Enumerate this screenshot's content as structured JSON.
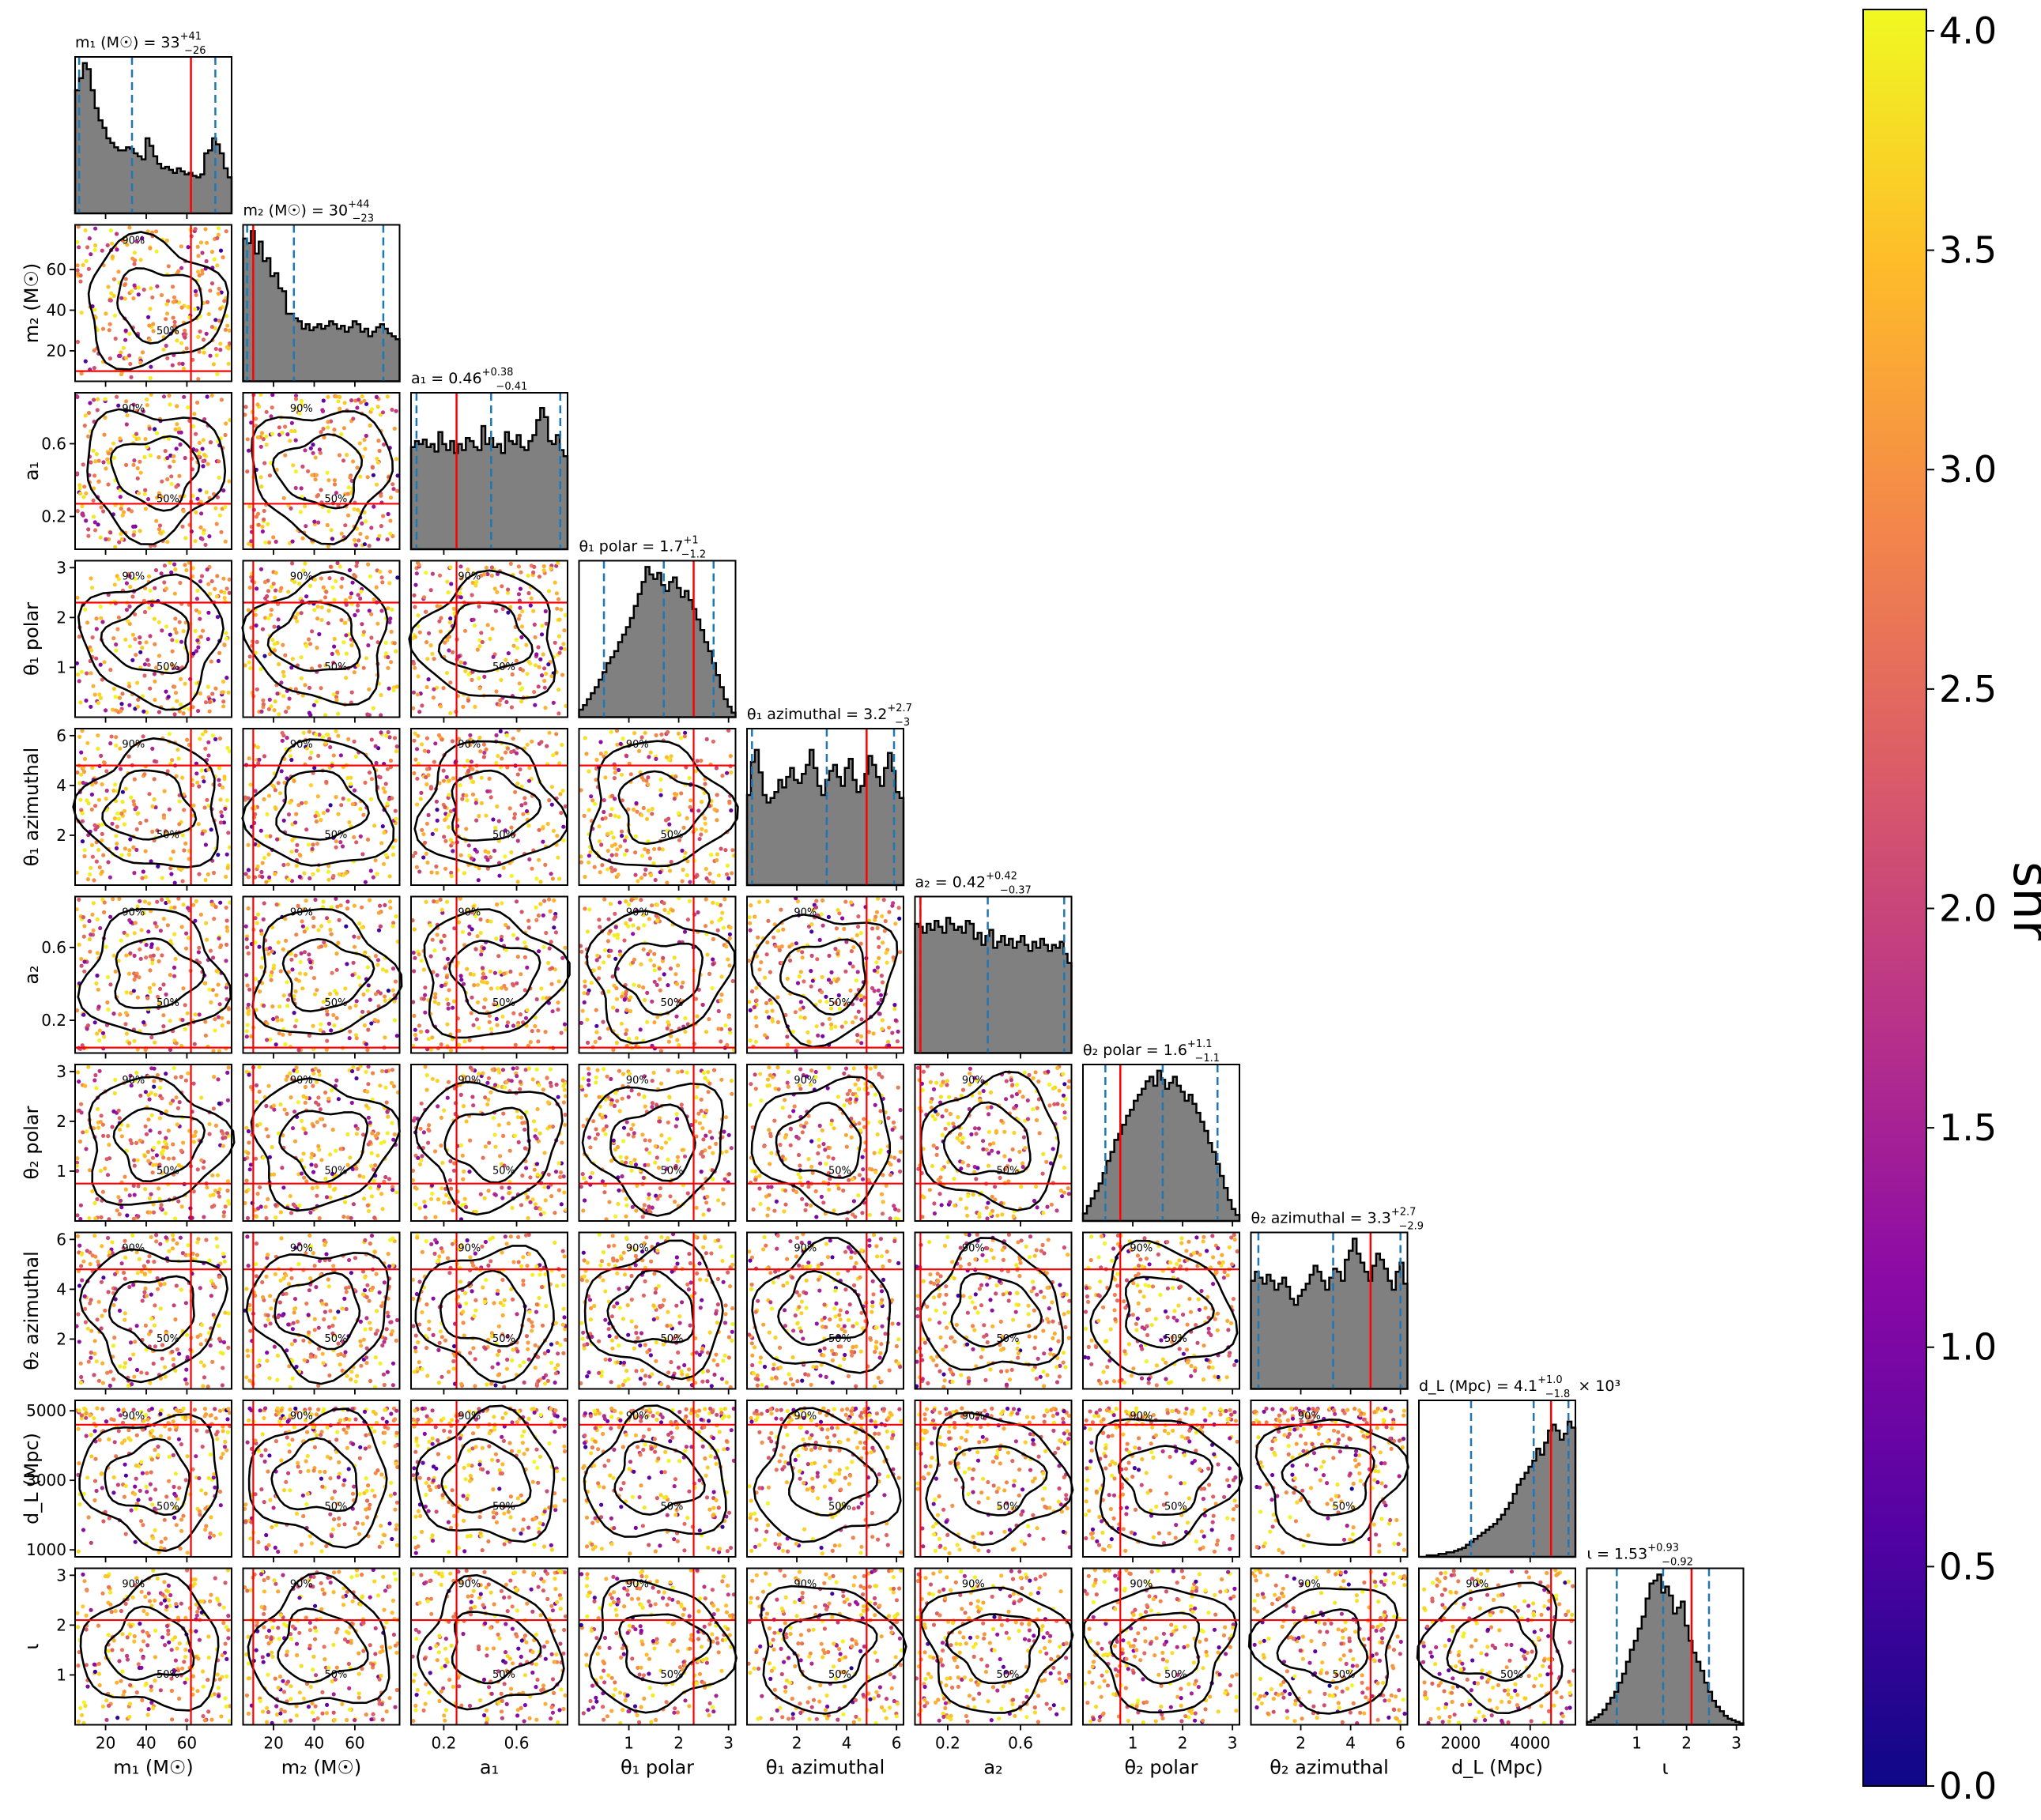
{
  "chart_data": {
    "type": "corner",
    "parameters": [
      {
        "id": "m1",
        "axis_label": "m₁ (M☉)",
        "title": "m₁ (M☉) = 33",
        "title_sup": "+41",
        "title_sub": "−26",
        "range": [
          5,
          82
        ],
        "ticks": [
          20,
          40,
          60
        ],
        "tick_labels": [
          "20",
          "40",
          "60"
        ],
        "median": 33,
        "q05": 7,
        "q95": 74,
        "true_value": 62,
        "hist": [
          0.82,
          0.9,
          1.0,
          0.96,
          0.82,
          0.7,
          0.62,
          0.57,
          0.5,
          0.47,
          0.44,
          0.42,
          0.42,
          0.44,
          0.43,
          0.4,
          0.38,
          0.36,
          0.5,
          0.45,
          0.38,
          0.33,
          0.3,
          0.31,
          0.29,
          0.27,
          0.3,
          0.28,
          0.26,
          0.27,
          0.25,
          0.24,
          0.26,
          0.4,
          0.42,
          0.5,
          0.46,
          0.4,
          0.3,
          0.24
        ]
      },
      {
        "id": "m2",
        "axis_label": "m₂ (M☉)",
        "title": "m₂ (M☉) = 30",
        "title_sup": "+44",
        "title_sub": "−23",
        "range": [
          5,
          82
        ],
        "ticks": [
          20,
          40,
          60
        ],
        "tick_labels": [
          "20",
          "40",
          "60"
        ],
        "median": 30,
        "q05": 7,
        "q95": 74,
        "true_value": 10,
        "hist": [
          0.95,
          0.92,
          1.0,
          0.85,
          0.93,
          0.8,
          0.82,
          0.7,
          0.72,
          0.62,
          0.6,
          0.45,
          0.45,
          0.42,
          0.4,
          0.35,
          0.38,
          0.34,
          0.36,
          0.38,
          0.35,
          0.37,
          0.4,
          0.38,
          0.35,
          0.37,
          0.33,
          0.36,
          0.4,
          0.38,
          0.33,
          0.35,
          0.3,
          0.33,
          0.36,
          0.38,
          0.35,
          0.32,
          0.3,
          0.28
        ]
      },
      {
        "id": "a1",
        "axis_label": "a₁",
        "title": "a₁ = 0.46",
        "title_sup": "+0.38",
        "title_sub": "−0.41",
        "range": [
          0.02,
          0.88
        ],
        "ticks": [
          0.2,
          0.6
        ],
        "tick_labels": [
          "0.2",
          "0.6"
        ],
        "median": 0.46,
        "q05": 0.05,
        "q95": 0.84,
        "true_value": 0.27,
        "hist": [
          0.68,
          0.72,
          0.7,
          0.73,
          0.68,
          0.7,
          0.65,
          0.78,
          0.7,
          0.66,
          0.72,
          0.64,
          0.7,
          0.66,
          0.74,
          0.72,
          0.68,
          0.66,
          0.82,
          0.7,
          0.74,
          0.68,
          0.7,
          0.64,
          0.78,
          0.72,
          0.7,
          0.76,
          0.68,
          0.66,
          0.72,
          0.76,
          0.86,
          0.94,
          0.88,
          0.72,
          0.7,
          0.76,
          0.66,
          0.62
        ]
      },
      {
        "id": "theta1_polar",
        "axis_label": "θ₁ polar",
        "title": "θ₁ polar = 1.7",
        "title_sup": "+1",
        "title_sub": "−1.2",
        "range": [
          0,
          3.14
        ],
        "ticks": [
          1,
          2,
          3
        ],
        "tick_labels": [
          "1",
          "2",
          "3"
        ],
        "median": 1.7,
        "q05": 0.5,
        "q95": 2.7,
        "true_value": 2.3,
        "hist": [
          0.05,
          0.08,
          0.12,
          0.16,
          0.2,
          0.25,
          0.3,
          0.36,
          0.4,
          0.44,
          0.5,
          0.55,
          0.6,
          0.66,
          0.74,
          0.82,
          0.9,
          1.0,
          0.95,
          0.92,
          0.96,
          0.88,
          0.84,
          0.9,
          0.93,
          0.86,
          0.8,
          0.84,
          0.78,
          0.72,
          0.65,
          0.58,
          0.5,
          0.44,
          0.36,
          0.28,
          0.2,
          0.12,
          0.07,
          0.03
        ]
      },
      {
        "id": "theta1_azimuthal",
        "axis_label": "θ₁ azimuthal",
        "title": "θ₁ azimuthal = 3.2",
        "title_sup": "+2.7",
        "title_sub": "−3",
        "range": [
          0,
          6.28
        ],
        "ticks": [
          2,
          4,
          6
        ],
        "tick_labels": [
          "2",
          "4",
          "6"
        ],
        "median": 3.2,
        "q05": 0.2,
        "q95": 5.9,
        "true_value": 4.8,
        "hist": [
          0.6,
          0.82,
          0.9,
          0.75,
          0.6,
          0.55,
          0.58,
          0.62,
          0.7,
          0.65,
          0.72,
          0.78,
          0.7,
          0.68,
          0.74,
          0.8,
          0.9,
          0.78,
          0.66,
          0.6,
          0.7,
          0.76,
          0.8,
          0.72,
          0.66,
          0.78,
          0.84,
          0.7,
          0.62,
          0.66,
          0.74,
          0.86,
          0.8,
          0.72,
          0.66,
          0.78,
          0.88,
          0.76,
          0.62,
          0.58
        ]
      },
      {
        "id": "a2",
        "axis_label": "a₂",
        "title": "a₂ = 0.42",
        "title_sup": "+0.42",
        "title_sub": "−0.37",
        "range": [
          0.02,
          0.88
        ],
        "ticks": [
          0.2,
          0.6
        ],
        "tick_labels": [
          "0.2",
          "0.6"
        ],
        "median": 0.42,
        "q05": 0.05,
        "q95": 0.84,
        "true_value": 0.05,
        "hist": [
          0.86,
          0.84,
          0.8,
          0.86,
          0.82,
          0.88,
          0.84,
          0.8,
          0.9,
          0.86,
          0.82,
          0.84,
          0.8,
          0.88,
          0.86,
          0.76,
          0.8,
          0.72,
          0.78,
          0.82,
          0.7,
          0.74,
          0.78,
          0.72,
          0.76,
          0.7,
          0.74,
          0.78,
          0.72,
          0.68,
          0.74,
          0.7,
          0.76,
          0.72,
          0.68,
          0.72,
          0.7,
          0.74,
          0.66,
          0.6
        ]
      },
      {
        "id": "theta2_polar",
        "axis_label": "θ₂ polar",
        "title": "θ₂ polar = 1.6",
        "title_sup": "+1.1",
        "title_sub": "−1.1",
        "range": [
          0,
          3.14
        ],
        "ticks": [
          1,
          2,
          3
        ],
        "tick_labels": [
          "1",
          "2",
          "3"
        ],
        "median": 1.6,
        "q05": 0.45,
        "q95": 2.7,
        "true_value": 0.75,
        "hist": [
          0.05,
          0.1,
          0.15,
          0.2,
          0.25,
          0.32,
          0.4,
          0.46,
          0.54,
          0.58,
          0.64,
          0.7,
          0.74,
          0.8,
          0.84,
          0.88,
          0.93,
          0.96,
          0.9,
          1.0,
          0.94,
          0.88,
          0.92,
          0.96,
          0.9,
          0.86,
          0.8,
          0.84,
          0.78,
          0.72,
          0.66,
          0.6,
          0.52,
          0.46,
          0.38,
          0.3,
          0.22,
          0.14,
          0.08,
          0.04
        ]
      },
      {
        "id": "theta2_azimuthal",
        "axis_label": "θ₂ azimuthal",
        "title": "θ₂ azimuthal = 3.3",
        "title_sup": "+2.7",
        "title_sub": "−2.9",
        "range": [
          0,
          6.28
        ],
        "ticks": [
          2,
          4,
          6
        ],
        "tick_labels": [
          "2",
          "4",
          "6"
        ],
        "median": 3.3,
        "q05": 0.3,
        "q95": 6.0,
        "true_value": 4.8,
        "hist": [
          0.72,
          0.78,
          0.74,
          0.7,
          0.76,
          0.72,
          0.66,
          0.7,
          0.74,
          0.68,
          0.6,
          0.56,
          0.62,
          0.66,
          0.7,
          0.76,
          0.82,
          0.78,
          0.72,
          0.66,
          0.74,
          0.8,
          0.78,
          0.72,
          0.86,
          0.92,
          1.0,
          0.9,
          0.84,
          0.78,
          0.72,
          0.82,
          0.9,
          0.86,
          0.8,
          0.72,
          0.66,
          0.78,
          0.84,
          0.7
        ]
      },
      {
        "id": "dL",
        "axis_label": "d_L (Mpc)",
        "title": "d_L (Mpc) = 4.1",
        "title_sup": "+1.0",
        "title_sub": "−1.8",
        "title_suffix": "× 10³",
        "range": [
          800,
          5300
        ],
        "ticks": [
          1000,
          3000,
          5000
        ],
        "tick_labels": [
          "1000",
          "3000",
          "5000"
        ],
        "x_ticks": [
          2000,
          4000
        ],
        "x_tick_labels": [
          "2000",
          "4000"
        ],
        "median": 4100,
        "q05": 2300,
        "q95": 5100,
        "true_value": 4600,
        "hist": [
          0.0,
          0.0,
          0.01,
          0.01,
          0.01,
          0.02,
          0.02,
          0.03,
          0.03,
          0.04,
          0.05,
          0.06,
          0.08,
          0.1,
          0.12,
          0.14,
          0.16,
          0.18,
          0.2,
          0.22,
          0.25,
          0.28,
          0.32,
          0.36,
          0.42,
          0.48,
          0.52,
          0.56,
          0.6,
          0.64,
          0.72,
          0.68,
          0.76,
          0.84,
          0.88,
          0.84,
          0.78,
          0.82,
          0.9,
          0.86
        ]
      },
      {
        "id": "iota",
        "axis_label": "ι",
        "title": "ι = 1.53",
        "title_sup": "+0.93",
        "title_sub": "−0.92",
        "range": [
          0,
          3.14
        ],
        "ticks": [
          1,
          2,
          3
        ],
        "tick_labels": [
          "1",
          "2",
          "3"
        ],
        "median": 1.53,
        "q05": 0.6,
        "q95": 2.45,
        "true_value": 2.1,
        "hist": [
          0.02,
          0.03,
          0.05,
          0.07,
          0.1,
          0.14,
          0.18,
          0.22,
          0.28,
          0.34,
          0.42,
          0.5,
          0.56,
          0.64,
          0.72,
          0.84,
          0.94,
          0.96,
          1.0,
          0.88,
          0.92,
          0.86,
          0.74,
          0.78,
          0.82,
          0.66,
          0.56,
          0.48,
          0.42,
          0.36,
          0.28,
          0.22,
          0.16,
          0.12,
          0.09,
          0.06,
          0.04,
          0.03,
          0.02,
          0.01
        ]
      }
    ],
    "colorbar": {
      "label": "snr",
      "range": [
        0.0,
        4.0
      ],
      "ticks": [
        0.0,
        0.5,
        1.0,
        1.5,
        2.0,
        2.5,
        3.0,
        3.5,
        4.0
      ],
      "tick_labels": [
        "0.0",
        "0.5",
        "1.0",
        "1.5",
        "2.0",
        "2.5",
        "3.0",
        "3.5",
        "4.0"
      ],
      "colormap": [
        "#0d0887",
        "#5302a3",
        "#8b0aa5",
        "#b83289",
        "#db5c68",
        "#f48849",
        "#febc2a",
        "#f0f921"
      ]
    },
    "contour_labels": [
      "50%",
      "90%"
    ],
    "colors": {
      "histogram_fill": "#808080",
      "histogram_edge": "#000000",
      "quantile_line": "#1f77b4",
      "truth_line": "#ff0000",
      "contour": "#000000"
    }
  }
}
